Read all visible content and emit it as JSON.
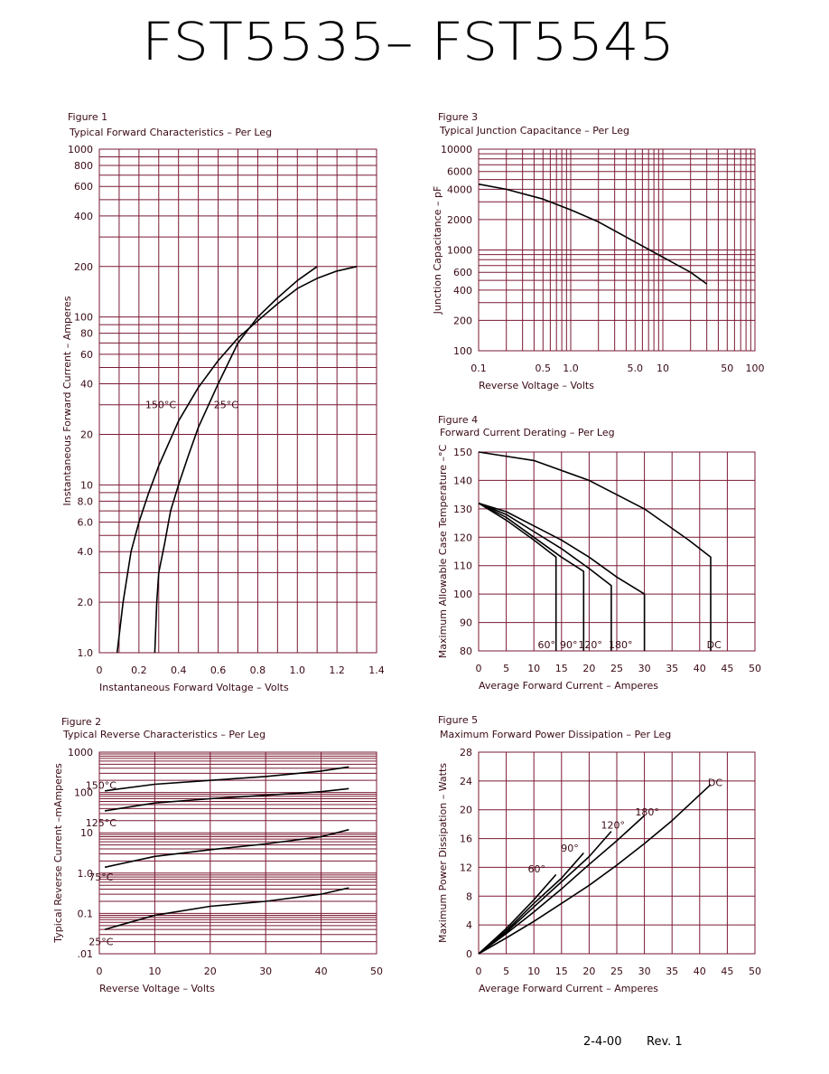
{
  "header": {
    "title": "FST5535– FST5545"
  },
  "footer": {
    "date": "2-4-00",
    "rev": "Rev. 1"
  },
  "colors": {
    "grid": "#7a1a33",
    "text": "#3a0a14",
    "curve": "#000000"
  },
  "chart_data": [
    {
      "id": "fig1",
      "type": "line",
      "figure_label": "Figure 1",
      "title": "Typical Forward Characteristics – Per Leg",
      "xlabel": "Instantaneous Forward Voltage – Volts",
      "ylabel": "Instantaneous Forward Current – Amperes",
      "xscale": "linear",
      "yscale": "log",
      "xlim": [
        0,
        1.4
      ],
      "ylim": [
        1,
        1000
      ],
      "xticks": [
        0,
        0.2,
        0.4,
        0.6,
        0.8,
        1.0,
        1.2,
        1.4
      ],
      "xtick_labels": [
        "0",
        "0.2",
        "0.4",
        "0.6",
        "0.8",
        "1.0",
        "1.2",
        "1.4"
      ],
      "yticks": [
        1,
        2,
        4,
        6,
        8,
        10,
        20,
        40,
        60,
        80,
        100,
        200,
        400,
        600,
        800,
        1000
      ],
      "ytick_labels": [
        "1.0",
        "2.0",
        "4.0",
        "6.0",
        "8.0",
        "10",
        "20",
        "40",
        "60",
        "80",
        "100",
        "200",
        "400",
        "600",
        "800",
        "1000"
      ],
      "series": [
        {
          "name": "150°C",
          "x": [
            0.09,
            0.12,
            0.16,
            0.2,
            0.25,
            0.3,
            0.4,
            0.5,
            0.6,
            0.7,
            0.8,
            0.9,
            1.0,
            1.1,
            1.2,
            1.3
          ],
          "y": [
            1,
            2,
            4,
            6,
            9,
            13,
            24,
            38,
            55,
            75,
            95,
            120,
            148,
            170,
            188,
            200
          ]
        },
        {
          "name": "25°C",
          "x": [
            0.28,
            0.29,
            0.3,
            0.33,
            0.36,
            0.4,
            0.45,
            0.5,
            0.6,
            0.7,
            0.8,
            0.9,
            1.0,
            1.1
          ],
          "y": [
            1,
            2,
            3,
            4.5,
            7,
            10,
            15,
            22,
            40,
            70,
            100,
            130,
            165,
            200
          ]
        }
      ],
      "annotations": [
        "150°C",
        "25°C"
      ]
    },
    {
      "id": "fig2",
      "type": "line",
      "figure_label": "Figure 2",
      "title": "Typical Reverse Characteristics – Per Leg",
      "xlabel": "Reverse Voltage – Volts",
      "ylabel": "Typical Reverse Current –mAmperes",
      "xscale": "linear",
      "yscale": "log",
      "xlim": [
        0,
        50
      ],
      "ylim": [
        0.01,
        1000
      ],
      "xticks": [
        0,
        10,
        20,
        30,
        40,
        50
      ],
      "xtick_labels": [
        "0",
        "10",
        "20",
        "30",
        "40",
        "50"
      ],
      "yticks": [
        0.01,
        0.1,
        1,
        10,
        100,
        1000
      ],
      "ytick_labels": [
        ".01",
        "0.1",
        "1.0",
        "10",
        "100",
        "1000"
      ],
      "series": [
        {
          "name": "150°C",
          "x": [
            1,
            10,
            20,
            30,
            40,
            45
          ],
          "y": [
            110,
            160,
            200,
            250,
            340,
            430
          ]
        },
        {
          "name": "125°C",
          "x": [
            1,
            10,
            20,
            30,
            40,
            45
          ],
          "y": [
            35,
            55,
            70,
            85,
            105,
            125
          ]
        },
        {
          "name": "75°C",
          "x": [
            1,
            10,
            20,
            30,
            40,
            45
          ],
          "y": [
            1.4,
            2.6,
            3.8,
            5.3,
            8,
            12
          ]
        },
        {
          "name": "25°C",
          "x": [
            1,
            10,
            20,
            30,
            40,
            45
          ],
          "y": [
            0.04,
            0.09,
            0.15,
            0.2,
            0.3,
            0.43
          ]
        }
      ],
      "annotations": [
        "150°C",
        "125°C",
        "75°C",
        "25°C"
      ]
    },
    {
      "id": "fig3",
      "type": "line",
      "figure_label": "Figure 3",
      "title": "Typical Junction Capacitance – Per Leg",
      "xlabel": "Reverse Voltage – Volts",
      "ylabel": "Junction Capacitance – pF",
      "xscale": "log",
      "yscale": "log",
      "xlim": [
        0.1,
        100
      ],
      "ylim": [
        100,
        10000
      ],
      "xticks": [
        0.1,
        0.5,
        1.0,
        5.0,
        10,
        50,
        100
      ],
      "xtick_labels": [
        "0.1",
        "0.5",
        "1.0",
        "5.0",
        "10",
        "50",
        "100"
      ],
      "yticks": [
        100,
        200,
        400,
        600,
        1000,
        2000,
        4000,
        6000,
        10000
      ],
      "ytick_labels": [
        "100",
        "200",
        "400",
        "600",
        "1000",
        "2000",
        "4000",
        "6000",
        "10000"
      ],
      "series": [
        {
          "x": [
            0.1,
            0.2,
            0.5,
            1,
            2,
            5,
            10,
            20,
            30
          ],
          "y": [
            4500,
            4000,
            3200,
            2500,
            1900,
            1200,
            850,
            600,
            460
          ]
        }
      ]
    },
    {
      "id": "fig4",
      "type": "line",
      "figure_label": "Figure 4",
      "title": "Forward Current Derating – Per Leg",
      "xlabel": "Average Forward Current – Amperes",
      "ylabel": "Maximum Allowable Case Temperature –°C",
      "xscale": "linear",
      "yscale": "linear",
      "xlim": [
        0,
        50
      ],
      "ylim": [
        80,
        150
      ],
      "xticks": [
        0,
        5,
        10,
        15,
        20,
        25,
        30,
        35,
        40,
        45,
        50
      ],
      "xtick_labels": [
        "0",
        "5",
        "10",
        "15",
        "20",
        "25",
        "30",
        "35",
        "40",
        "45",
        "50"
      ],
      "yticks": [
        80,
        90,
        100,
        110,
        120,
        130,
        140,
        150
      ],
      "ytick_labels": [
        "80",
        "90",
        "100",
        "110",
        "120",
        "130",
        "140",
        "150"
      ],
      "series": [
        {
          "name": "DC",
          "x": [
            0,
            10,
            20,
            30,
            38,
            42,
            42
          ],
          "y": [
            150,
            147,
            140,
            130,
            119,
            113,
            80
          ]
        },
        {
          "name": "180°",
          "x": [
            0,
            5,
            10,
            15,
            20,
            25,
            30,
            30
          ],
          "y": [
            132,
            129,
            124,
            119,
            113,
            106,
            100,
            80
          ]
        },
        {
          "name": "120°",
          "x": [
            0,
            5,
            10,
            15,
            20,
            24,
            24
          ],
          "y": [
            132,
            128,
            122,
            116,
            109,
            103,
            80
          ]
        },
        {
          "name": "90°",
          "x": [
            0,
            5,
            10,
            15,
            19,
            19
          ],
          "y": [
            132,
            127,
            120,
            113,
            108,
            80
          ]
        },
        {
          "name": "60°",
          "x": [
            0,
            5,
            10,
            14,
            14
          ],
          "y": [
            132,
            126,
            119,
            113,
            80
          ]
        }
      ],
      "annotations": [
        "60°",
        "90°",
        "120°",
        "180°",
        "DC"
      ]
    },
    {
      "id": "fig5",
      "type": "line",
      "figure_label": "Figure 5",
      "title": "Maximum Forward Power Dissipation – Per Leg",
      "xlabel": "Average Forward Current – Amperes",
      "ylabel": "Maximum Power Dissipation – Watts",
      "xscale": "linear",
      "yscale": "linear",
      "xlim": [
        0,
        50
      ],
      "ylim": [
        0,
        28
      ],
      "xticks": [
        0,
        5,
        10,
        15,
        20,
        25,
        30,
        35,
        40,
        45,
        50
      ],
      "xtick_labels": [
        "0",
        "5",
        "10",
        "15",
        "20",
        "25",
        "30",
        "35",
        "40",
        "45",
        "50"
      ],
      "yticks": [
        0,
        4,
        8,
        12,
        16,
        20,
        24,
        28
      ],
      "ytick_labels": [
        "0",
        "4",
        "8",
        "12",
        "16",
        "20",
        "24",
        "28"
      ],
      "series": [
        {
          "name": "60°",
          "x": [
            0,
            5,
            10,
            14
          ],
          "y": [
            0,
            3.5,
            7.5,
            11
          ]
        },
        {
          "name": "90°",
          "x": [
            0,
            5,
            10,
            15,
            19
          ],
          "y": [
            0,
            3.2,
            7,
            10.5,
            14
          ]
        },
        {
          "name": "120°",
          "x": [
            0,
            5,
            10,
            15,
            20,
            24
          ],
          "y": [
            0,
            3,
            6.5,
            10,
            13.5,
            17
          ]
        },
        {
          "name": "180°",
          "x": [
            0,
            5,
            10,
            15,
            20,
            25,
            30
          ],
          "y": [
            0,
            2.8,
            5.8,
            9,
            12.4,
            15.7,
            19.2
          ]
        },
        {
          "name": "DC",
          "x": [
            0,
            5,
            10,
            15,
            20,
            25,
            30,
            35,
            42
          ],
          "y": [
            0,
            2.2,
            4.5,
            7,
            9.5,
            12.3,
            15.3,
            18.5,
            23.5
          ]
        }
      ],
      "annotations": [
        "60°",
        "90°",
        "120°",
        "180°",
        "DC"
      ]
    }
  ]
}
